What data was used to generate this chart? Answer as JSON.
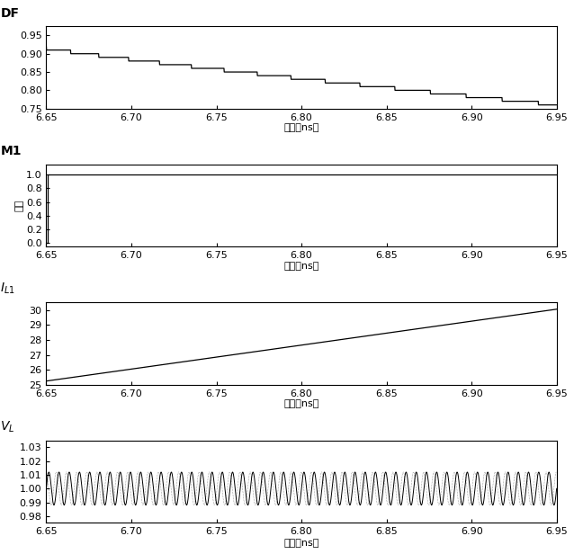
{
  "x_min": 6.65,
  "x_max": 6.95,
  "xticks": [
    6.65,
    6.7,
    6.75,
    6.8,
    6.85,
    6.9,
    6.95
  ],
  "xlabel": "时间（ns）",
  "df_ylabel": "DF",
  "df_ylim": [
    0.75,
    0.975
  ],
  "df_yticks": [
    0.75,
    0.8,
    0.85,
    0.9,
    0.95
  ],
  "m1_ylabel": "M1",
  "m1_ylabel2": "幅度",
  "m1_ylim": [
    -0.05,
    1.15
  ],
  "m1_yticks": [
    0,
    0.2,
    0.4,
    0.6,
    0.8,
    1
  ],
  "il1_ylabel": "I_L1",
  "il1_ylim": [
    25,
    30.5
  ],
  "il1_yticks": [
    25,
    26,
    27,
    28,
    29,
    30
  ],
  "vl_ylabel": "V_L",
  "vl_ylim": [
    0.975,
    1.035
  ],
  "vl_yticks": [
    0.98,
    0.99,
    1.0,
    1.01,
    1.02,
    1.03
  ],
  "line_color": "#000000",
  "bg_color": "#ffffff"
}
